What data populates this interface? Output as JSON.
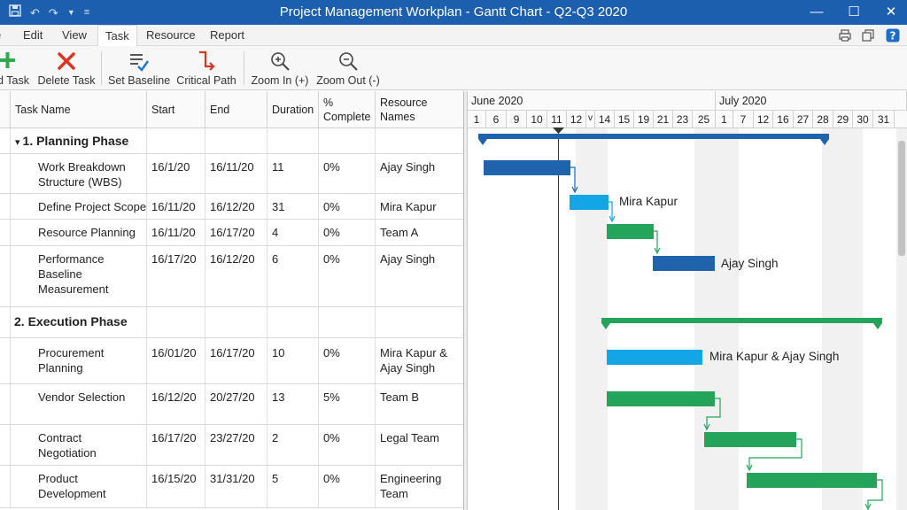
{
  "window": {
    "title": "Project Management Workplan - Gantt Chart - Q2-Q3 2020"
  },
  "colors": {
    "titlebar": "#1b5fae",
    "dark_blue": "#1f63ad",
    "light_blue": "#14a5e6",
    "green": "#24a35a",
    "delete_red": "#d9341f"
  },
  "tabs": [
    "Edit",
    "View",
    "Task",
    "Resource",
    "Report"
  ],
  "active_tab": "Task",
  "toolbar": {
    "add_task": "d Task",
    "delete_task": "Delete Task",
    "set_baseline": "Set Baseline",
    "critical_path": "Critical Path",
    "zoom_in": "Zoom In (+)",
    "zoom_out": "Zoom Out (-)"
  },
  "grid": {
    "headers": {
      "task_name": "Task Name",
      "start": "Start",
      "end": "End",
      "duration": "Duration",
      "complete": "% Complete",
      "resource": "Resource Names"
    },
    "rows": [
      {
        "name": "1. Planning Phase",
        "phase": true,
        "collapse": "▾"
      },
      {
        "name": "Work Breakdown Structure (WBS)",
        "start": "16/1/20",
        "end": "16/11/20",
        "duration": "11",
        "complete": "0%",
        "resource": "Ajay Singh"
      },
      {
        "name": "Define Project Scope",
        "start": "16/11/20",
        "end": "16/12/20",
        "duration": "31",
        "complete": "0%",
        "resource": "Mira Kapur"
      },
      {
        "name": "Resource Planning",
        "start": "16/11/20",
        "end": "16/17/20",
        "duration": "4",
        "complete": "0%",
        "resource": "Team A"
      },
      {
        "name": "Performance Baseline Measurement",
        "start": "16/17/20",
        "end": "16/12/20",
        "duration": "6",
        "complete": "0%",
        "resource": "Ajay Singh"
      },
      {
        "name": "2. Execution Phase",
        "phase": true
      },
      {
        "name": "Procurement Planning",
        "start": "16/01/20",
        "end": "16/17/20",
        "duration": "10",
        "complete": "0%",
        "resource": "Mira Kapur & Ajay Singh"
      },
      {
        "name": "Vendor Selection",
        "start": "16/12/20",
        "end": "20/27/20",
        "duration": "13",
        "complete": "5%",
        "resource": "Team B"
      },
      {
        "name": "Contract Negotiation",
        "start": "16/17/20",
        "end": "23/27/20",
        "duration": "2",
        "complete": "0%",
        "resource": "Legal Team"
      },
      {
        "name": "Product Development",
        "start": "16/15/20",
        "end": "31/31/20",
        "duration": "5",
        "complete": "0%",
        "resource": "Engineering Team"
      }
    ]
  },
  "timeline": {
    "months": [
      "June 2020",
      "July 2020"
    ],
    "days": [
      "1",
      "6",
      "9",
      "10",
      "11",
      "12",
      "v",
      "14",
      "15",
      "19",
      "21",
      "23",
      "25",
      "1",
      "7",
      "12",
      "16",
      "27",
      "28",
      "29",
      "30",
      "31"
    ]
  },
  "bar_labels": {
    "define_scope": "Mira Kapur",
    "baseline": "Ajay Singh",
    "procurement": "Mira Kapur & Ajay Singh"
  }
}
